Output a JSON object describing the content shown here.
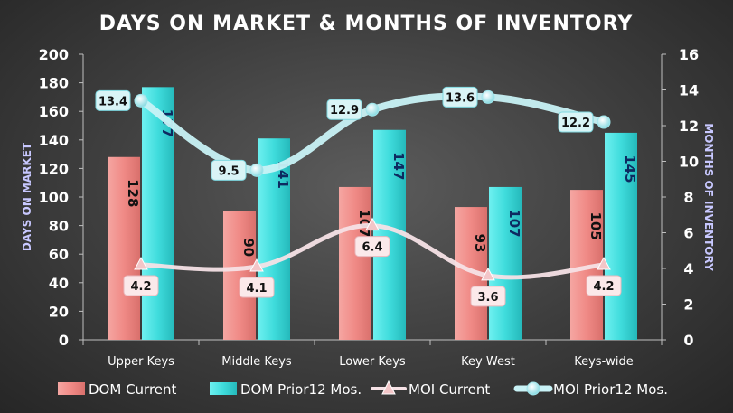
{
  "chart_data": {
    "type": "bar",
    "title": "DAYS ON MARKET & MONTHS OF INVENTORY",
    "categories": [
      "Upper Keys",
      "Middle Keys",
      "Lower Keys",
      "Key West",
      "Keys-wide"
    ],
    "ylabel": "DAYS ON MARKET",
    "y2label": "MONTHS OF INVENTORY",
    "ylim": [
      0,
      200
    ],
    "y2lim": [
      0,
      16
    ],
    "yticks": [
      "0",
      "20",
      "40",
      "60",
      "80",
      "100",
      "120",
      "140",
      "160",
      "180",
      "200"
    ],
    "y2ticks": [
      "0",
      "2",
      "4",
      "6",
      "8",
      "10",
      "12",
      "14",
      "16"
    ],
    "grid": false,
    "legend_position": "bottom",
    "series": [
      {
        "name": "DOM Current",
        "type": "bar",
        "axis": "left",
        "color": "#f08a86",
        "values": [
          128,
          90,
          107,
          93,
          105
        ]
      },
      {
        "name": "DOM Prior12 Mos.",
        "type": "bar",
        "axis": "left",
        "color": "#45e0e0",
        "values": [
          177,
          141,
          147,
          107,
          145
        ]
      },
      {
        "name": "MOI Current",
        "type": "line",
        "axis": "right",
        "color": "#f6e2e6",
        "values": [
          4.2,
          4.1,
          6.4,
          3.6,
          4.2
        ]
      },
      {
        "name": "MOI Prior12 Mos.",
        "type": "line",
        "axis": "right",
        "color": "#c8f2f6",
        "values": [
          13.4,
          9.5,
          12.9,
          13.6,
          12.2
        ]
      }
    ]
  }
}
